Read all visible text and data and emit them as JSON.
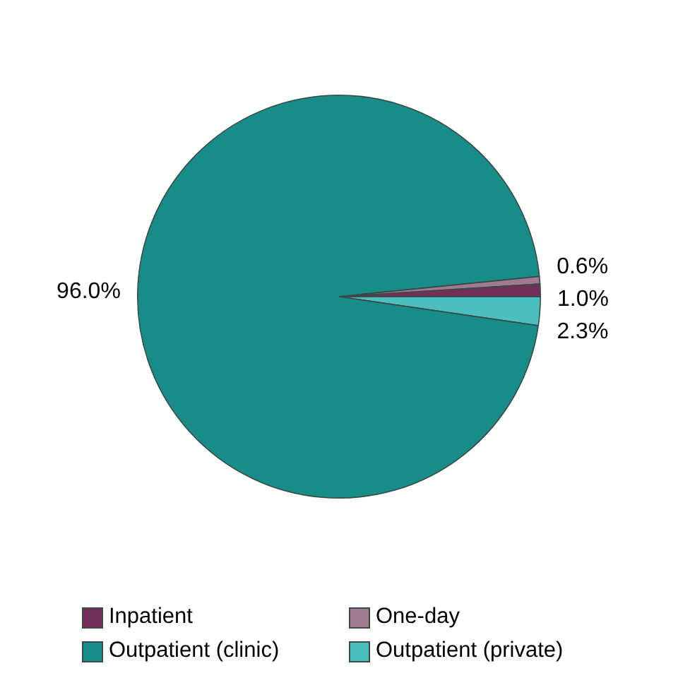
{
  "chart_data": {
    "type": "pie",
    "categories": [
      "Inpatient",
      "One-day",
      "Outpatient (clinic)",
      "Outpatient (private)"
    ],
    "values": [
      1.0,
      0.6,
      96.0,
      2.3
    ],
    "colors": [
      "#722f57",
      "#a07b8f",
      "#178c88",
      "#4cc0bf"
    ],
    "value_labels": [
      "1.0%",
      "0.6%",
      "96.0%",
      "2.3%"
    ],
    "legend": "bottom"
  }
}
